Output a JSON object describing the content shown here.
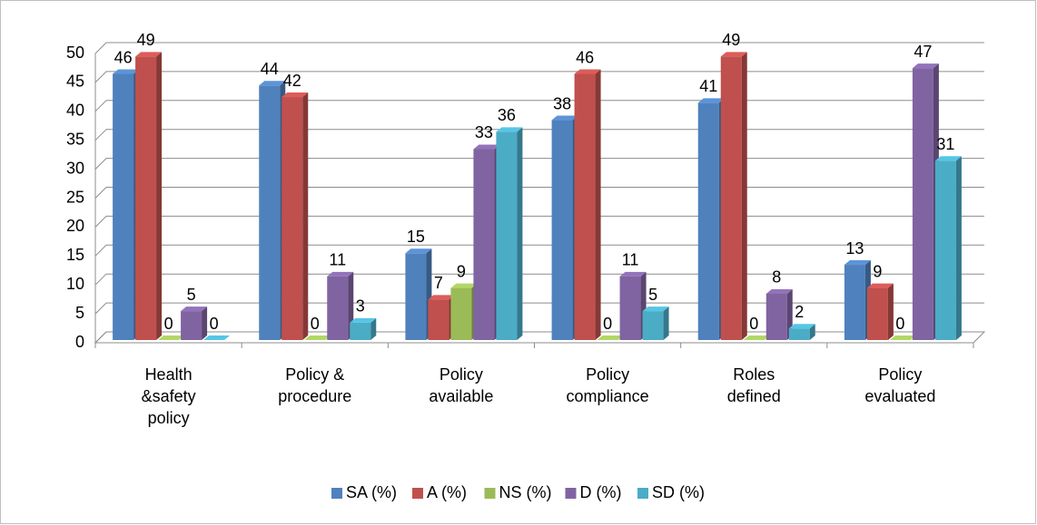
{
  "chart_data": {
    "type": "bar3d",
    "categories": [
      "Health &safety policy",
      "Policy & procedure",
      "Policy available",
      "Policy compliance",
      "Roles defined",
      "Policy evaluated"
    ],
    "series": [
      {
        "name": "SA (%)",
        "color": "#4f81bd",
        "values": [
          46,
          44,
          15,
          38,
          41,
          13
        ]
      },
      {
        "name": "A (%)",
        "color": "#c0504d",
        "values": [
          49,
          42,
          7,
          46,
          49,
          9
        ]
      },
      {
        "name": "NS (%)",
        "color": "#9bbb59",
        "values": [
          0,
          0,
          9,
          0,
          0,
          0
        ]
      },
      {
        "name": "D (%)",
        "color": "#8064a2",
        "values": [
          5,
          11,
          33,
          11,
          8,
          47
        ]
      },
      {
        "name": "SD (%)",
        "color": "#4bacc6",
        "values": [
          0,
          3,
          36,
          5,
          2,
          31
        ]
      }
    ],
    "ylim": [
      0,
      50
    ],
    "yticks": [
      0,
      5,
      10,
      15,
      20,
      25,
      30,
      35,
      40,
      45,
      50
    ],
    "grid": true,
    "legend": "bottom"
  }
}
